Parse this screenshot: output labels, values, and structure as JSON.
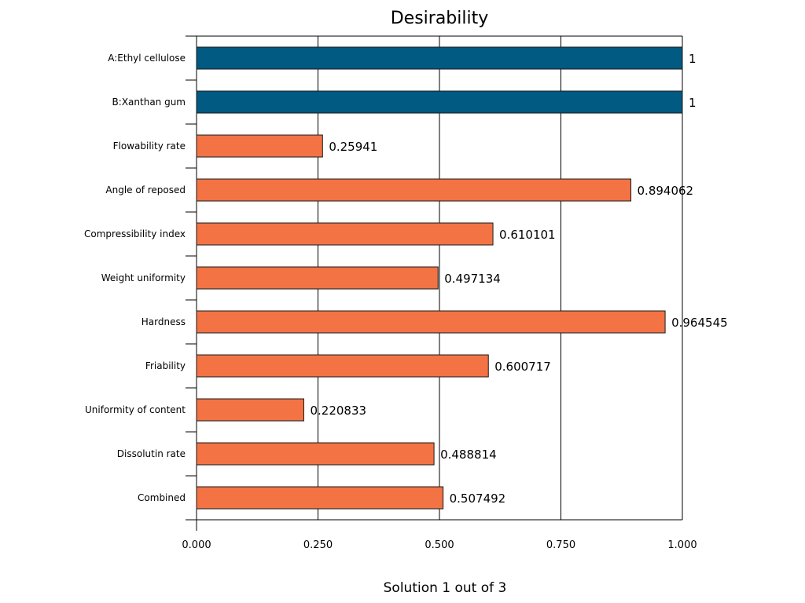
{
  "chart_data": {
    "type": "bar",
    "orientation": "horizontal",
    "title": "Desirability",
    "xlabel": "Solution 1 out of 3",
    "ylabel": "",
    "xlim": [
      0,
      1
    ],
    "xticks": [
      "0.000",
      "0.250",
      "0.500",
      "0.750",
      "1.000"
    ],
    "xtick_values": [
      0,
      0.25,
      0.5,
      0.75,
      1.0
    ],
    "grid": "vertical",
    "categories": [
      "A:Ethyl cellulose",
      "B:Xanthan gum",
      "Flowability rate",
      "Angle of reposed",
      "Compressibility index",
      "Weight uniformity",
      "Hardness",
      "Friability",
      "Uniformity of content",
      "Dissolutin rate",
      "Combined"
    ],
    "values": [
      1,
      1,
      0.25941,
      0.894062,
      0.610101,
      0.497134,
      0.964545,
      0.600717,
      0.220833,
      0.488814,
      0.507492
    ],
    "value_labels": [
      "1",
      "1",
      "0.25941",
      "0.894062",
      "0.610101",
      "0.497134",
      "0.964545",
      "0.600717",
      "0.220833",
      "0.488814",
      "0.507492"
    ],
    "kinds": [
      "factor",
      "factor",
      "response",
      "response",
      "response",
      "response",
      "response",
      "response",
      "response",
      "response",
      "response"
    ],
    "colors": {
      "factor": "#005a82",
      "response": "#f37344"
    }
  }
}
